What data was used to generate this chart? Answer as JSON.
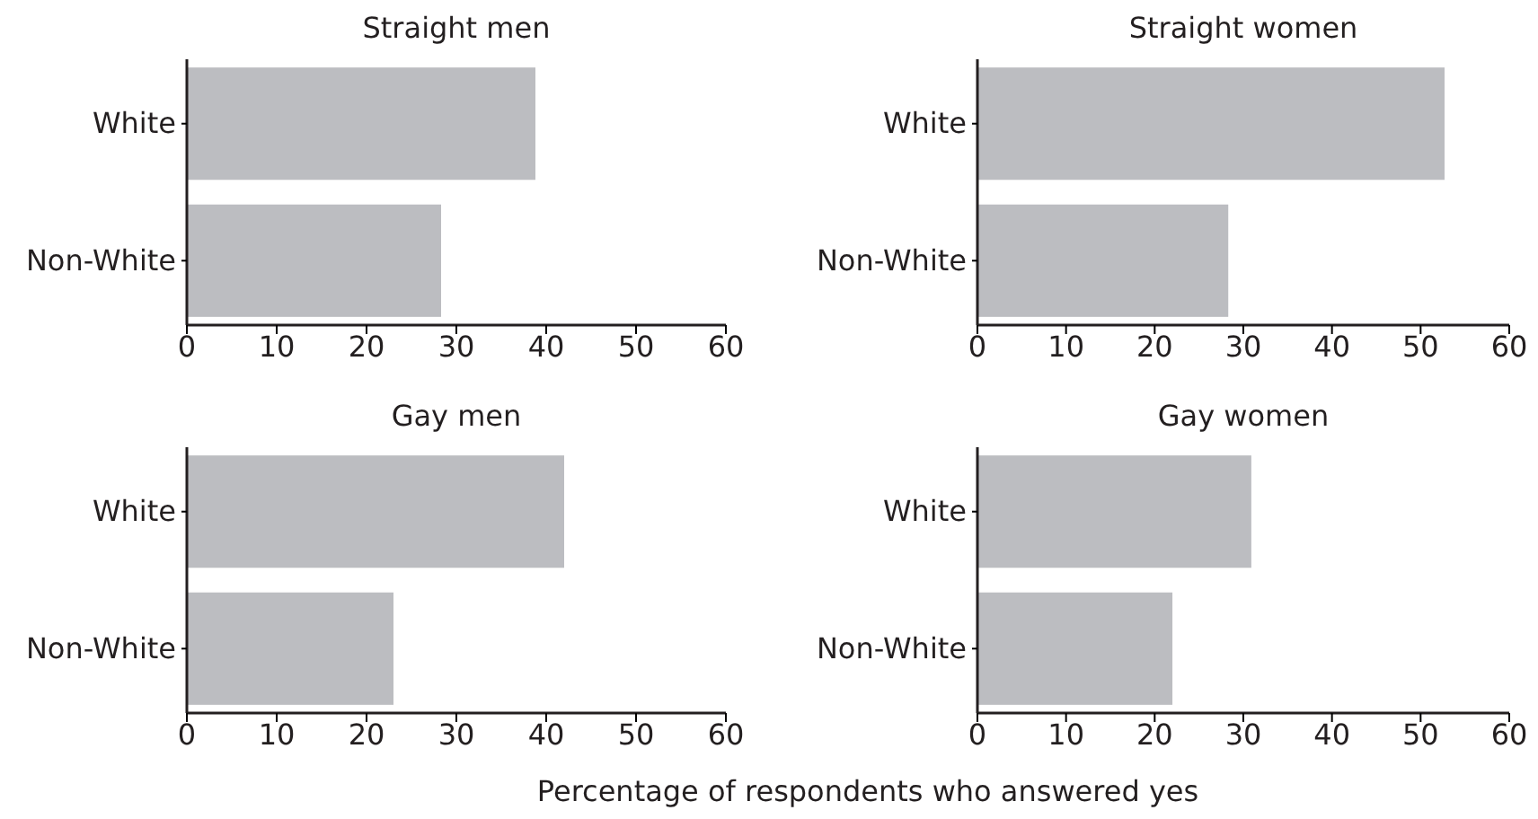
{
  "chart_data": [
    {
      "type": "bar",
      "orientation": "horizontal",
      "title": "Straight men",
      "categories": [
        "White",
        "Non-White"
      ],
      "values": [
        38.8,
        28.3
      ],
      "color": "#bcbdc1",
      "xlim": [
        0,
        60
      ],
      "xticks": [
        0,
        10,
        20,
        30,
        40,
        50,
        60
      ]
    },
    {
      "type": "bar",
      "orientation": "horizontal",
      "title": "Straight women",
      "categories": [
        "White",
        "Non-White"
      ],
      "values": [
        52.7,
        28.3
      ],
      "color": "#bcbdc1",
      "xlim": [
        0,
        60
      ],
      "xticks": [
        0,
        10,
        20,
        30,
        40,
        50,
        60
      ]
    },
    {
      "type": "bar",
      "orientation": "horizontal",
      "title": "Gay men",
      "categories": [
        "White",
        "Non-White"
      ],
      "values": [
        42.0,
        23.0
      ],
      "color": "#bcbdc1",
      "xlim": [
        0,
        60
      ],
      "xticks": [
        0,
        10,
        20,
        30,
        40,
        50,
        60
      ]
    },
    {
      "type": "bar",
      "orientation": "horizontal",
      "title": "Gay women",
      "categories": [
        "White",
        "Non-White"
      ],
      "values": [
        30.9,
        22.0
      ],
      "color": "#bcbdc1",
      "xlim": [
        0,
        60
      ],
      "xticks": [
        0,
        10,
        20,
        30,
        40,
        50,
        60
      ],
      "xlabel": "Percentage of respondents who answered yes"
    }
  ]
}
